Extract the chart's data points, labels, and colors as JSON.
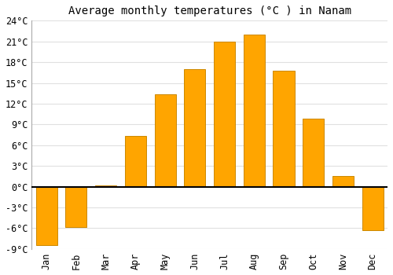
{
  "title": "Average monthly temperatures (°C ) in Nanam",
  "months": [
    "Jan",
    "Feb",
    "Mar",
    "Apr",
    "May",
    "Jun",
    "Jul",
    "Aug",
    "Sep",
    "Oct",
    "Nov",
    "Dec"
  ],
  "temperatures": [
    -8.5,
    -5.8,
    0.2,
    7.3,
    13.3,
    17.0,
    21.0,
    22.0,
    16.8,
    9.8,
    1.5,
    -6.3
  ],
  "bar_color": "#FFA500",
  "bar_edge_color": "#CC8800",
  "ylim": [
    -9,
    24
  ],
  "yticks": [
    -9,
    -6,
    -3,
    0,
    3,
    6,
    9,
    12,
    15,
    18,
    21,
    24
  ],
  "ytick_labels": [
    "-9°C",
    "-6°C",
    "-3°C",
    "0°C",
    "3°C",
    "6°C",
    "9°C",
    "12°C",
    "15°C",
    "18°C",
    "21°C",
    "24°C"
  ],
  "figure_bg": "#ffffff",
  "axes_bg": "#ffffff",
  "grid_color": "#e0e0e0",
  "title_fontsize": 10,
  "tick_fontsize": 8.5,
  "bar_width": 0.72
}
